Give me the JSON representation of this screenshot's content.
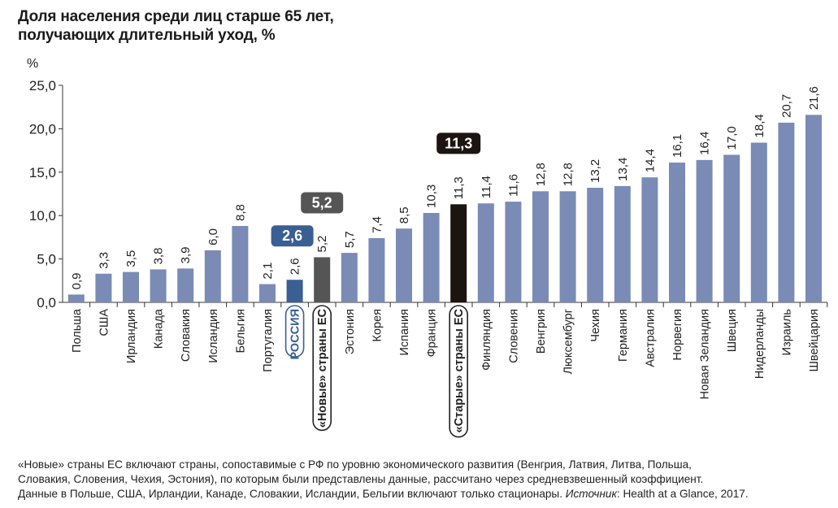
{
  "title_line1": "Доля населения среди лиц старше 65 лет,",
  "title_line2": "получающих длительный уход, %",
  "unit": "%",
  "footnote": {
    "line1": "«Новые» страны ЕС включают страны, сопоставимые с РФ по уровню экономического развития (Венгрия, Латвия, Литва, Польша,",
    "line2": "Словакия, Словения, Чехия, Эстония), по которым были представлены данные, рассчитано через средневзвешенный коэффициент.",
    "line3": "Данные в Польше, США, Ирландии, Канаде, Словакии, Исландии, Бельгии включают только стационары.",
    "source_label": "Источник",
    "source_text": ": Health at a Glance, 2017."
  },
  "colors": {
    "bar": "#7a8bb5",
    "russia": "#3a5f93",
    "new_eu": "#555555",
    "old_eu": "#1c1410"
  },
  "chart_data": {
    "type": "bar",
    "ylim": [
      0,
      25
    ],
    "yticks": [
      "0,0",
      "5,0",
      "10,0",
      "15,0",
      "20,0",
      "25,0"
    ],
    "grid": false,
    "categories": [
      "Польша",
      "США",
      "Ирландия",
      "Канада",
      "Словакия",
      "Исландия",
      "Бельгия",
      "Португалия",
      "РОССИЯ",
      "«Новые» страны ЕС",
      "Эстония",
      "Корея",
      "Испания",
      "Франция",
      "«Старые» страны ЕС",
      "Финляндия",
      "Словения",
      "Венгрия",
      "Люксембург",
      "Чехия",
      "Германия",
      "Австралия",
      "Норвегия",
      "Новая Зеландия",
      "Швеция",
      "Нидерланды",
      "Израиль",
      "Швейцария"
    ],
    "values": [
      0.9,
      3.3,
      3.5,
      3.8,
      3.9,
      6.0,
      8.8,
      2.1,
      2.6,
      5.2,
      5.7,
      7.4,
      8.5,
      10.3,
      11.3,
      11.4,
      11.6,
      12.8,
      12.8,
      13.2,
      13.4,
      14.4,
      16.1,
      16.4,
      17.0,
      18.4,
      20.7,
      21.6
    ],
    "labels": [
      "0,9",
      "3,3",
      "3,5",
      "3,8",
      "3,9",
      "6,0",
      "8,8",
      "2,1",
      "2,6",
      "5,2",
      "5,7",
      "7,4",
      "8,5",
      "10,3",
      "11,3",
      "11,4",
      "11,6",
      "12,8",
      "12,8",
      "13,2",
      "13,4",
      "14,4",
      "16,1",
      "16,4",
      "17,0",
      "18,4",
      "20,7",
      "21,6"
    ],
    "highlights": [
      {
        "category": "РОССИЯ",
        "badge": "2,6",
        "style": "russia"
      },
      {
        "category": "«Новые» страны ЕС",
        "badge": "5,2",
        "style": "new_eu"
      },
      {
        "category": "«Старые» страны ЕС",
        "badge": "11,3",
        "style": "old_eu"
      }
    ]
  }
}
